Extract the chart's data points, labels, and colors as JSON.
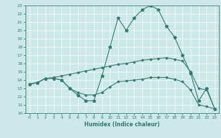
{
  "xlabel": "Humidex (Indice chaleur)",
  "xlim": [
    -0.5,
    23.5
  ],
  "ylim": [
    10,
    23
  ],
  "yticks": [
    10,
    11,
    12,
    13,
    14,
    15,
    16,
    17,
    18,
    19,
    20,
    21,
    22,
    23
  ],
  "xticks": [
    0,
    1,
    2,
    3,
    4,
    5,
    6,
    7,
    8,
    9,
    10,
    11,
    12,
    13,
    14,
    15,
    16,
    17,
    18,
    19,
    20,
    21,
    22,
    23
  ],
  "bg_color": "#cce8e8",
  "line_color": "#2e7d6e",
  "line1_x": [
    0,
    1,
    2,
    3,
    4,
    5,
    6,
    7,
    8,
    9,
    10,
    11,
    12,
    13,
    14,
    15,
    16,
    17,
    18,
    19,
    20,
    21,
    22,
    23
  ],
  "line1_y": [
    13.5,
    13.7,
    14.2,
    14.2,
    14.0,
    13.0,
    12.2,
    11.5,
    11.5,
    14.5,
    18.0,
    21.5,
    20.0,
    21.5,
    22.5,
    23.0,
    22.5,
    20.5,
    19.2,
    17.0,
    14.8,
    11.5,
    13.0,
    10.5
  ],
  "line2_x": [
    0,
    1,
    2,
    3,
    4,
    5,
    6,
    7,
    8,
    9,
    10,
    11,
    12,
    13,
    14,
    15,
    16,
    17,
    18,
    19,
    20,
    21,
    22,
    23
  ],
  "line2_y": [
    13.5,
    13.7,
    14.2,
    14.3,
    14.5,
    14.7,
    14.9,
    15.1,
    15.3,
    15.5,
    15.7,
    15.9,
    16.0,
    16.2,
    16.4,
    16.5,
    16.6,
    16.7,
    16.5,
    16.3,
    15.0,
    13.0,
    12.8,
    10.5
  ],
  "line3_x": [
    0,
    1,
    2,
    3,
    4,
    5,
    6,
    7,
    8,
    9,
    10,
    11,
    12,
    13,
    14,
    15,
    16,
    17,
    18,
    19,
    20,
    21,
    22,
    23
  ],
  "line3_y": [
    13.5,
    13.7,
    14.2,
    14.2,
    14.0,
    13.0,
    12.5,
    12.2,
    12.2,
    12.5,
    13.2,
    13.8,
    13.9,
    14.0,
    14.1,
    14.3,
    14.3,
    14.3,
    14.1,
    13.8,
    12.8,
    11.0,
    10.8,
    10.5
  ]
}
